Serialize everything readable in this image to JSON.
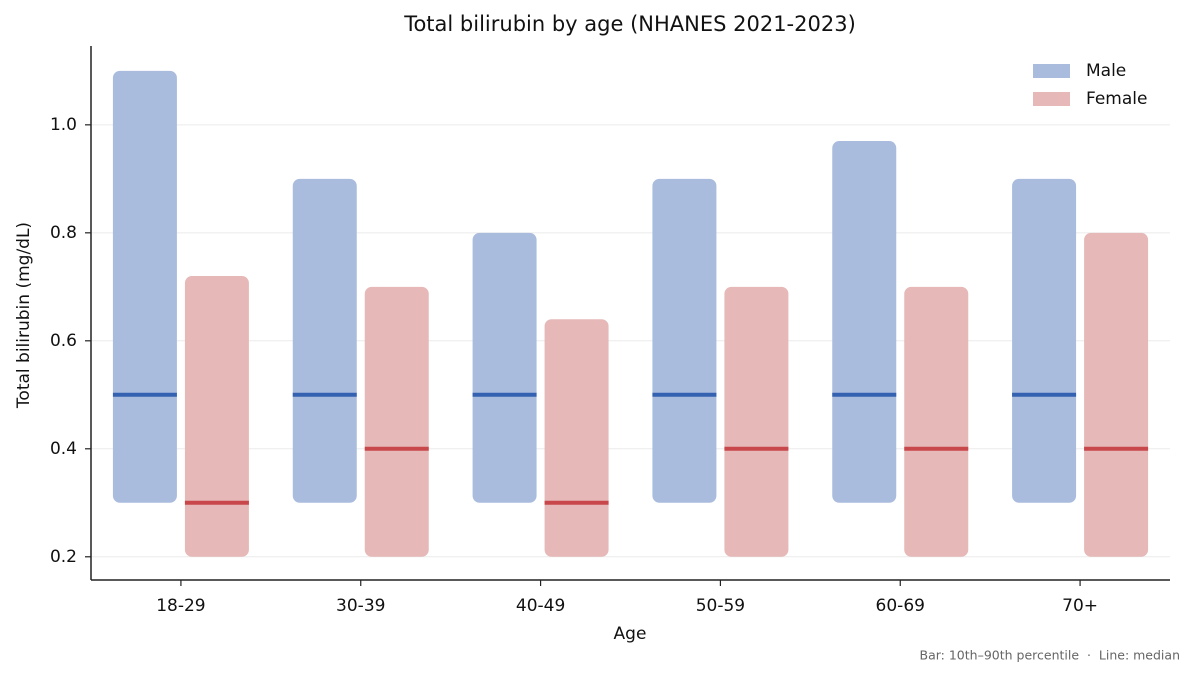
{
  "chart_data": {
    "type": "range-bar",
    "title": "Total bilirubin by age (NHANES 2021-2023)",
    "x_label": "Age",
    "y_label": "Total bilirubin (mg/dL)",
    "footnote": "Bar: 10th–90th percentile  ·  Line: median",
    "categories": [
      "18-29",
      "30-39",
      "40-49",
      "50-59",
      "60-69",
      "70+"
    ],
    "series": [
      {
        "name": "Male",
        "color": "#aabcde",
        "median_color": "#3461b0",
        "low": [
          0.3,
          0.3,
          0.3,
          0.3,
          0.3,
          0.3
        ],
        "high": [
          1.1,
          0.9,
          0.8,
          0.9,
          0.97,
          0.9
        ],
        "median": [
          0.5,
          0.5,
          0.5,
          0.5,
          0.5,
          0.5
        ]
      },
      {
        "name": "Female",
        "color": "#e6b8b8",
        "median_color": "#c8474b",
        "low": [
          0.2,
          0.2,
          0.2,
          0.2,
          0.2,
          0.2
        ],
        "high": [
          0.72,
          0.7,
          0.64,
          0.7,
          0.7,
          0.8
        ],
        "median": [
          0.3,
          0.4,
          0.3,
          0.4,
          0.4,
          0.4
        ]
      }
    ],
    "ylim": [
      0.157,
      1.146
    ],
    "yticks": [
      0.2,
      0.4,
      0.6,
      0.8,
      {
        "value": 1,
        "label": "1.0"
      }
    ],
    "grid": true,
    "legend": "upper right"
  }
}
